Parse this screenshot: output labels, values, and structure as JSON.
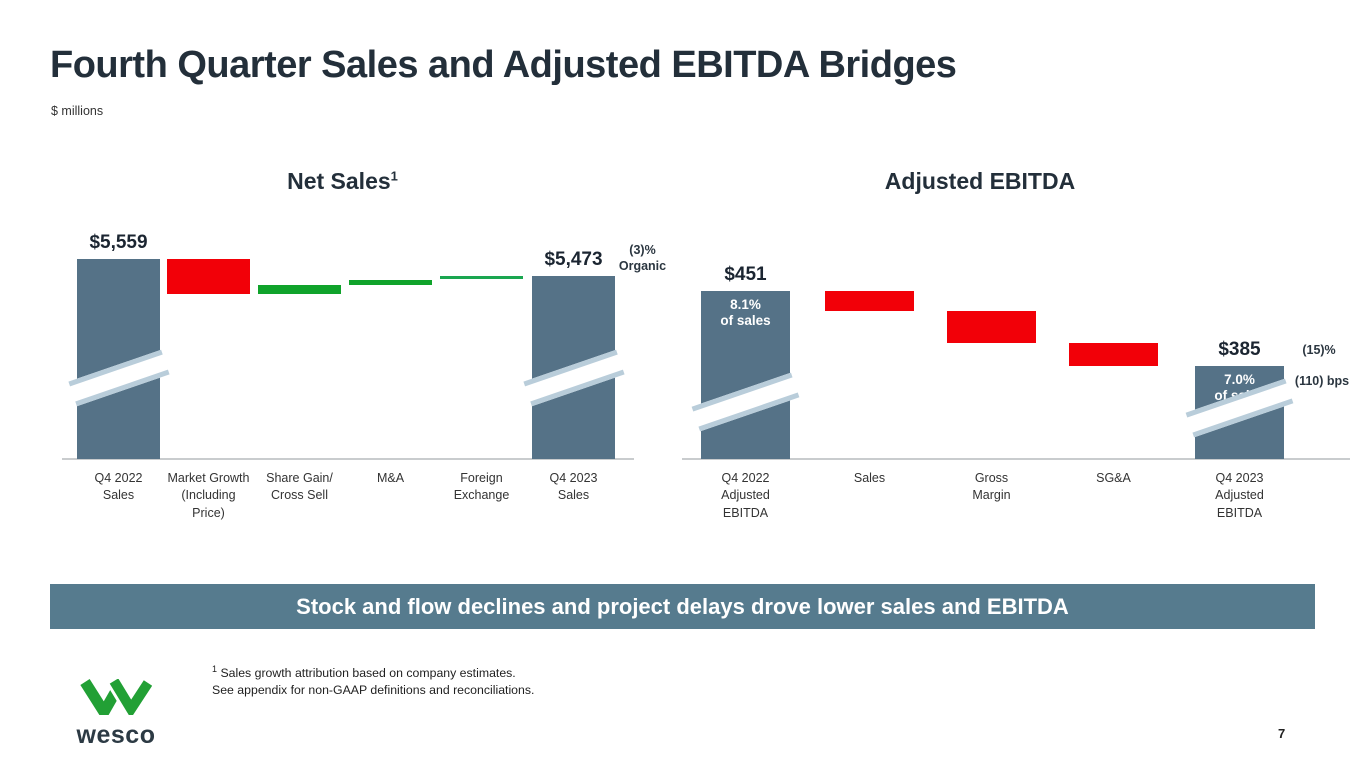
{
  "slide": {
    "title": "Fourth Quarter Sales and Adjusted EBITDA Bridges",
    "units_note": "$ millions",
    "banner": "Stock and flow declines and project delays drove lower sales and EBITDA",
    "footnote_sup": "1",
    "footnotes": [
      "Sales growth attribution based on company estimates.",
      "See appendix for non-GAAP definitions and reconciliations."
    ],
    "logo_text": "wesco",
    "page_number": "7"
  },
  "colors": {
    "total_bar": "#557287",
    "decrease": "#f20008",
    "increase": "#10a32b",
    "increase_alt": "#1aa650",
    "banner_bg": "#567b8e",
    "break_stripe": "#b9cdda",
    "axis_line": "#c9ccce",
    "title_text": "#232f3a",
    "logo_green": "#22a035",
    "logo_text_color": "#2c3a44"
  },
  "chart_data": [
    {
      "type": "bar",
      "subtype": "waterfall-bridge",
      "title": "Net Sales",
      "title_sup": "1",
      "axis_break_on_totals": true,
      "bars": [
        {
          "label": "Q4 2022\nSales",
          "kind": "total",
          "value": 5559,
          "value_label": "$5,559",
          "axis_break": true
        },
        {
          "label": "Market Growth\n(Including\nPrice)",
          "kind": "decrease",
          "value": -180,
          "estimated": true
        },
        {
          "label": "Share Gain/\nCross Sell",
          "kind": "increase",
          "value": 45,
          "estimated": true
        },
        {
          "label": "M&A",
          "kind": "increase",
          "value": 30,
          "estimated": true
        },
        {
          "label": "Foreign\nExchange",
          "kind": "increase",
          "value": 19,
          "estimated": true,
          "color_key": "increase_alt"
        },
        {
          "label": "Q4 2023\nSales",
          "kind": "total",
          "value": 5473,
          "value_label": "$5,473",
          "axis_break": true
        }
      ],
      "annotations": [
        {
          "text": "(3)%\nOrganic"
        }
      ]
    },
    {
      "type": "bar",
      "subtype": "waterfall-bridge",
      "title": "Adjusted EBITDA",
      "axis_break_on_totals": true,
      "bars": [
        {
          "label": "Q4 2022\nAdjusted\nEBITDA",
          "kind": "total",
          "value": 451,
          "value_label": "$451",
          "inside_label": "8.1%\nof sales",
          "axis_break": true
        },
        {
          "label": "Sales",
          "kind": "decrease",
          "value": -18,
          "estimated": true
        },
        {
          "label": "Gross\nMargin",
          "kind": "decrease",
          "value": -28,
          "estimated": true
        },
        {
          "label": "SG&A",
          "kind": "decrease",
          "value": -20,
          "estimated": true
        },
        {
          "label": "Q4 2023\nAdjusted\nEBITDA",
          "kind": "total",
          "value": 385,
          "value_label": "$385",
          "inside_label": "7.0%\nof sales",
          "axis_break": true
        }
      ],
      "annotations": [
        {
          "text": "(15)%"
        },
        {
          "text": "(110) bps"
        }
      ]
    }
  ]
}
